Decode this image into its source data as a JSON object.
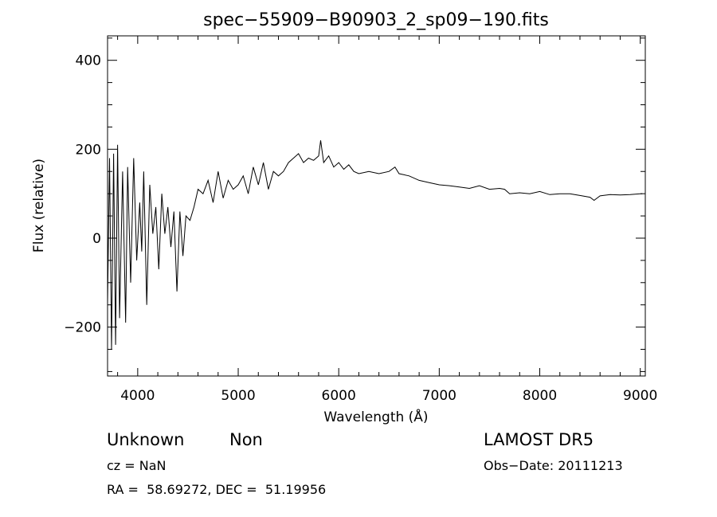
{
  "chart_data": {
    "type": "line",
    "title": "spec−55909−B90903_2_sp09−190.fits",
    "xlabel": "Wavelength (Å)",
    "ylabel": "Flux (relative)",
    "xlim": [
      3700,
      9050
    ],
    "ylim": [
      -310,
      455
    ],
    "xticks": [
      4000,
      5000,
      6000,
      7000,
      8000,
      9000
    ],
    "yticks": [
      -200,
      0,
      200,
      400
    ],
    "ytick_labels": [
      "−200",
      "0",
      "200",
      "400"
    ],
    "grid": false,
    "series": [
      {
        "x": [
          3700,
          3720,
          3740,
          3760,
          3780,
          3800,
          3820,
          3850,
          3880,
          3900,
          3930,
          3960,
          3990,
          4020,
          4040,
          4060,
          4090,
          4120,
          4150,
          4180,
          4210,
          4240,
          4270,
          4300,
          4330,
          4360,
          4390,
          4420,
          4450,
          4480,
          4520,
          4560,
          4600,
          4650,
          4700,
          4750,
          4800,
          4850,
          4900,
          4950,
          5000,
          5050,
          5100,
          5150,
          5200,
          5250,
          5300,
          5350,
          5400,
          5450,
          5500,
          5550,
          5600,
          5650,
          5700,
          5750,
          5800,
          5820,
          5850,
          5900,
          5950,
          6000,
          6050,
          6100,
          6150,
          6200,
          6300,
          6400,
          6500,
          6560,
          6600,
          6700,
          6800,
          6900,
          7000,
          7100,
          7200,
          7300,
          7400,
          7500,
          7600,
          7650,
          7700,
          7800,
          7900,
          8000,
          8100,
          8200,
          8300,
          8400,
          8500,
          8540,
          8600,
          8700,
          8800,
          8900,
          9000,
          9020
        ],
        "y": [
          -150,
          180,
          -250,
          190,
          -240,
          210,
          -180,
          150,
          -190,
          160,
          -100,
          180,
          -50,
          80,
          -30,
          150,
          -150,
          120,
          10,
          70,
          -70,
          100,
          10,
          70,
          -20,
          60,
          -120,
          60,
          -40,
          50,
          40,
          70,
          110,
          100,
          130,
          80,
          150,
          90,
          130,
          110,
          120,
          140,
          100,
          160,
          120,
          170,
          110,
          150,
          140,
          150,
          170,
          180,
          190,
          170,
          180,
          175,
          185,
          220,
          170,
          185,
          160,
          170,
          155,
          165,
          150,
          145,
          150,
          145,
          150,
          160,
          145,
          140,
          130,
          125,
          120,
          118,
          115,
          112,
          118,
          110,
          112,
          110,
          100,
          102,
          100,
          105,
          98,
          100,
          100,
          96,
          92,
          85,
          95,
          98,
          97,
          98,
          100,
          100
        ]
      }
    ]
  },
  "info": {
    "class_label": "Unknown",
    "subclass_label": "Non",
    "survey": "LAMOST DR5",
    "cz": "cz = NaN",
    "obs_date": "Obs−Date: 20111213",
    "coords": "RA =  58.69272, DEC =  51.19956"
  }
}
